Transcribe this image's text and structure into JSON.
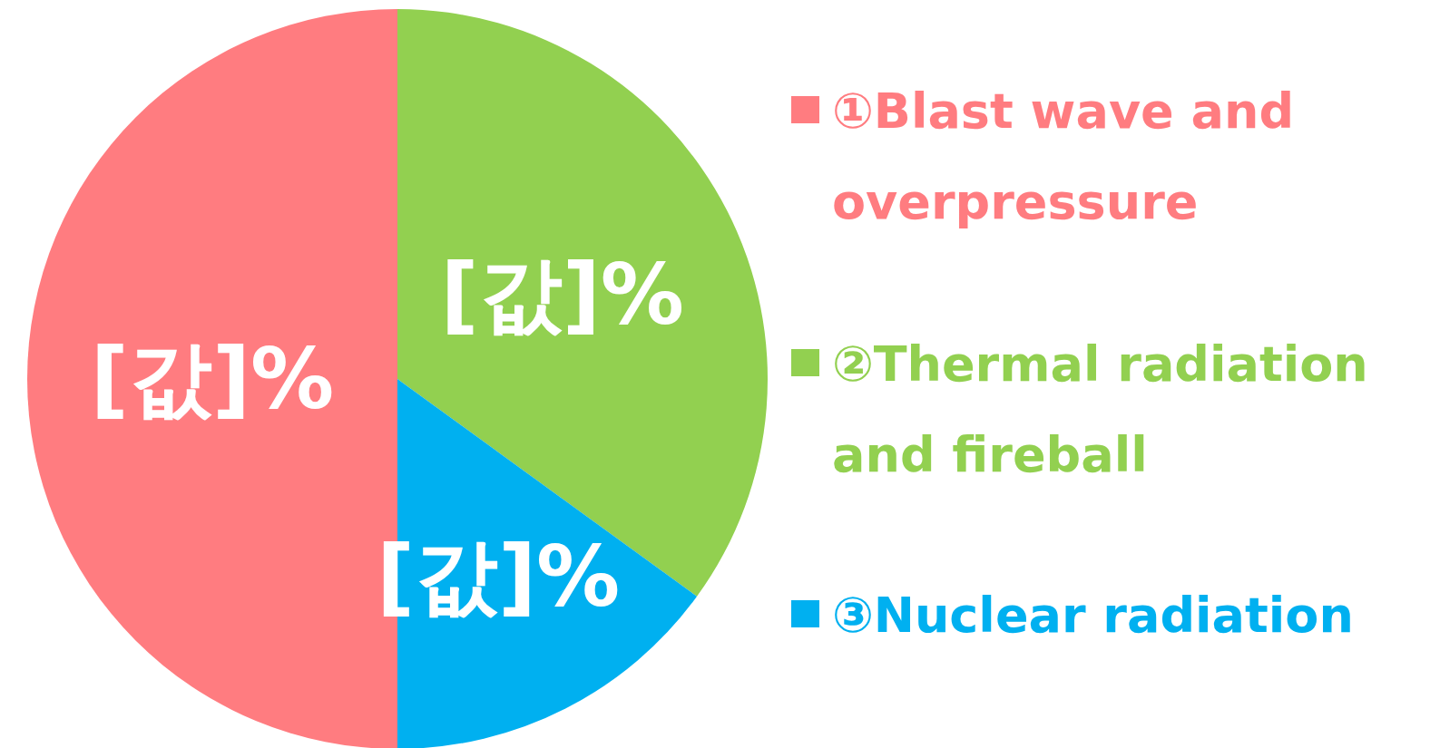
{
  "chart_data": {
    "type": "pie",
    "categories": [
      "①Blast wave and overpressure",
      "②Thermal radiation and fireball",
      "③Nuclear radiation"
    ],
    "values": [
      50,
      35,
      15
    ],
    "colors": [
      "#ff7c80",
      "#92d050",
      "#00b0f0"
    ],
    "value_labels": [
      "[값]%",
      "[값]%",
      "[값]%"
    ],
    "legend": "right"
  }
}
